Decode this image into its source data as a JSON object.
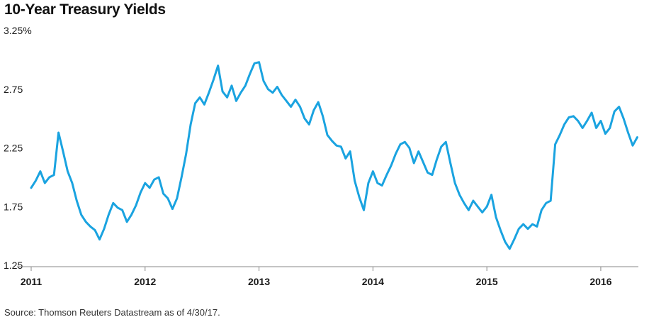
{
  "chart_data": {
    "type": "line",
    "title": "10-Year Treasury Yields",
    "xlabel": "",
    "ylabel": "",
    "y_tick_labels": [
      "3.25%",
      "2.75",
      "2.25",
      "1.75",
      "1.25"
    ],
    "y_tick_values": [
      3.25,
      2.75,
      2.25,
      1.75,
      1.25
    ],
    "x_tick_labels": [
      "2011",
      "2012",
      "2013",
      "2014",
      "2015",
      "2016"
    ],
    "x_tick_values": [
      2011,
      2012,
      2013,
      2014,
      2015,
      2016
    ],
    "xlim": [
      2011,
      2016.33
    ],
    "ylim": [
      1.25,
      3.25
    ],
    "grid": false,
    "line_color": "#1aa3e0",
    "series": [
      {
        "x": [
          2011.0,
          2011.04,
          2011.08,
          2011.12,
          2011.16,
          2011.2,
          2011.24,
          2011.28,
          2011.32,
          2011.36,
          2011.4,
          2011.44,
          2011.48,
          2011.52,
          2011.56,
          2011.6,
          2011.64,
          2011.68,
          2011.72,
          2011.76,
          2011.8,
          2011.84,
          2011.88,
          2011.92,
          2011.96,
          2012.0,
          2012.04,
          2012.08,
          2012.12,
          2012.16,
          2012.2,
          2012.24,
          2012.28,
          2012.32,
          2012.36,
          2012.4,
          2012.44,
          2012.48,
          2012.52,
          2012.56,
          2012.6,
          2012.64,
          2012.68,
          2012.72,
          2012.76,
          2012.8,
          2012.84,
          2012.88,
          2012.92,
          2012.96,
          2013.0,
          2013.04,
          2013.08,
          2013.12,
          2013.16,
          2013.2,
          2013.24,
          2013.28,
          2013.32,
          2013.36,
          2013.4,
          2013.44,
          2013.48,
          2013.52,
          2013.56,
          2013.6,
          2013.64,
          2013.68,
          2013.72,
          2013.76,
          2013.8,
          2013.84,
          2013.88,
          2013.92,
          2013.96,
          2014.0,
          2014.04,
          2014.08,
          2014.12,
          2014.16,
          2014.2,
          2014.24,
          2014.28,
          2014.32,
          2014.36,
          2014.4,
          2014.44,
          2014.48,
          2014.52,
          2014.56,
          2014.6,
          2014.64,
          2014.68,
          2014.72,
          2014.76,
          2014.8,
          2014.84,
          2014.88,
          2014.92,
          2014.96,
          2015.0,
          2015.04,
          2015.08,
          2015.12,
          2015.16,
          2015.2,
          2015.24,
          2015.28,
          2015.32,
          2015.36,
          2015.4,
          2015.44,
          2015.48,
          2015.52,
          2015.56,
          2015.6,
          2015.64,
          2015.68,
          2015.72,
          2015.76,
          2015.8,
          2015.84,
          2015.88,
          2015.92,
          2015.96,
          2016.0,
          2016.04,
          2016.08,
          2016.12,
          2016.16,
          2016.2,
          2016.24,
          2016.28,
          2016.32
        ],
        "values": [
          1.91,
          1.97,
          2.05,
          1.95,
          2.0,
          2.02,
          2.38,
          2.22,
          2.05,
          1.95,
          1.8,
          1.68,
          1.62,
          1.58,
          1.55,
          1.47,
          1.56,
          1.68,
          1.78,
          1.74,
          1.72,
          1.62,
          1.68,
          1.76,
          1.87,
          1.95,
          1.91,
          1.98,
          2.0,
          1.86,
          1.82,
          1.73,
          1.82,
          2.0,
          2.2,
          2.45,
          2.63,
          2.68,
          2.62,
          2.72,
          2.83,
          2.95,
          2.73,
          2.68,
          2.78,
          2.65,
          2.72,
          2.78,
          2.88,
          2.97,
          2.98,
          2.82,
          2.75,
          2.72,
          2.77,
          2.7,
          2.65,
          2.6,
          2.66,
          2.6,
          2.5,
          2.45,
          2.57,
          2.64,
          2.52,
          2.36,
          2.31,
          2.27,
          2.26,
          2.16,
          2.22,
          1.97,
          1.83,
          1.72,
          1.95,
          2.05,
          1.95,
          1.93,
          2.02,
          2.1,
          2.2,
          2.28,
          2.3,
          2.25,
          2.12,
          2.22,
          2.13,
          2.04,
          2.02,
          2.15,
          2.26,
          2.3,
          2.12,
          1.95,
          1.85,
          1.78,
          1.72,
          1.8,
          1.75,
          1.7,
          1.75,
          1.85,
          1.66,
          1.55,
          1.45,
          1.39,
          1.47,
          1.56,
          1.6,
          1.56,
          1.6,
          1.58,
          1.72,
          1.78,
          1.8,
          2.28,
          2.36,
          2.45,
          2.51,
          2.52,
          2.48,
          2.42,
          2.48,
          2.55,
          2.42,
          2.48,
          2.37,
          2.42,
          2.56,
          2.6,
          2.5,
          2.38,
          2.27,
          2.34
        ]
      }
    ]
  },
  "source": "Source: Thomson Reuters Datastream as of 4/30/17."
}
